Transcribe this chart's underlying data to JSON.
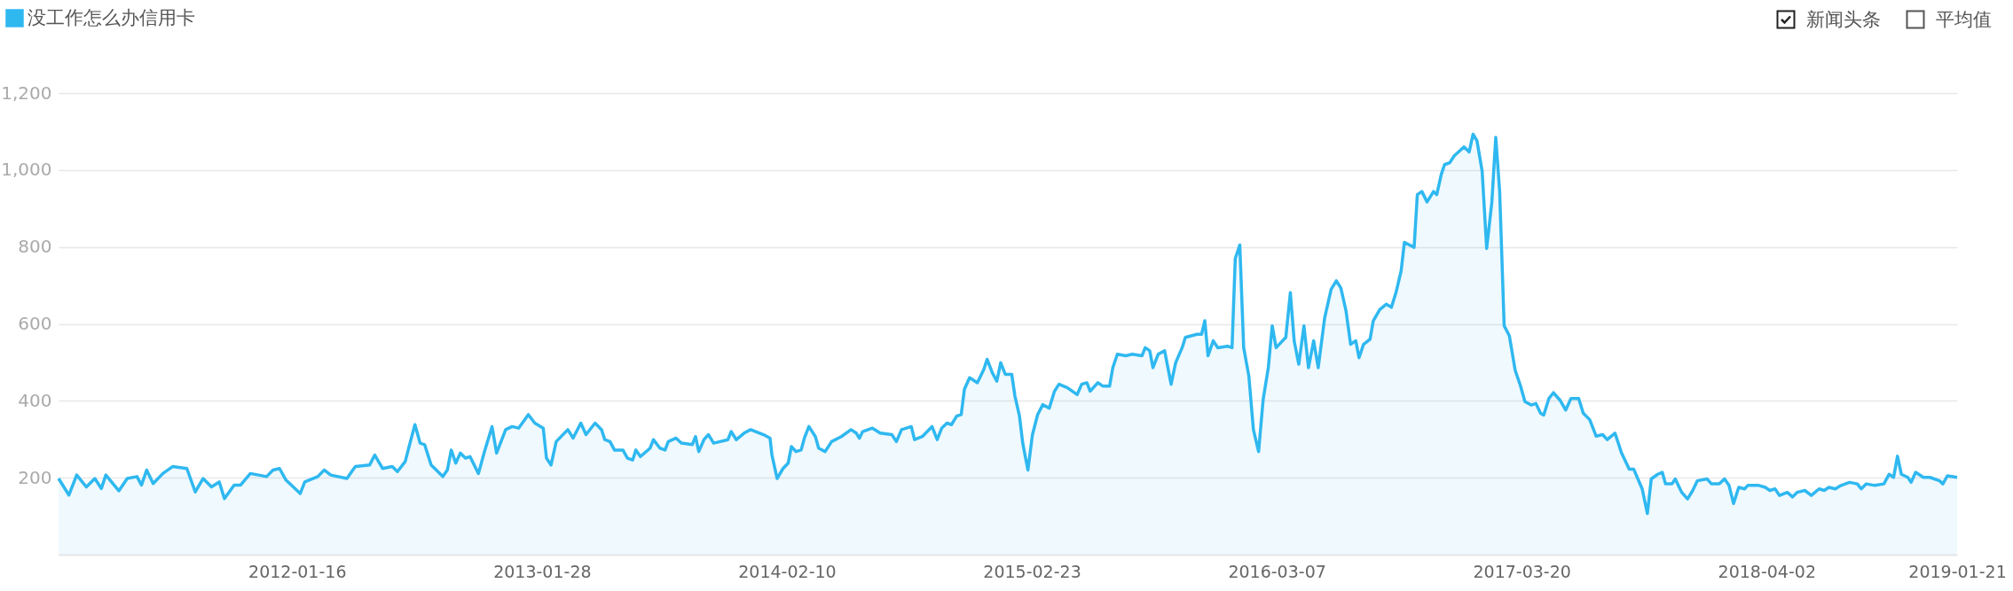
{
  "chart_data": {
    "type": "area",
    "legend": "top left",
    "grid": "y",
    "annotations": [
      "新闻头条",
      "平均值"
    ],
    "xlim": [
      "2011-01-13",
      "2019-01-21"
    ],
    "ylim": [
      0,
      1200
    ],
    "xticks": [
      "2012-01-16",
      "2013-01-28",
      "2014-02-10",
      "2015-02-23",
      "2016-03-07",
      "2017-03-20",
      "2018-04-02",
      "2019-01-21"
    ],
    "yticks": [
      200,
      400,
      600,
      800,
      {
        "value": 1000,
        "label": "1,000"
      },
      {
        "value": 1200,
        "label": "1,200"
      }
    ],
    "x": [
      "2011-01-13",
      "2011-01-29",
      "2011-02-10",
      "2011-02-25",
      "2011-03-10",
      "2011-03-20",
      "2011-03-27",
      "2011-04-16",
      "2011-04-29",
      "2011-05-14",
      "2011-05-21",
      "2011-05-29",
      "2011-06-08",
      "2011-06-23",
      "2011-07-08",
      "2011-07-30",
      "2011-08-12",
      "2011-08-24",
      "2011-09-06",
      "2011-09-18",
      "2011-09-26",
      "2011-10-11",
      "2011-10-21",
      "2011-11-05",
      "2011-11-30",
      "2011-12-10",
      "2011-12-20",
      "2011-12-30",
      "2012-01-21",
      "2012-01-28",
      "2012-02-17",
      "2012-02-27",
      "2012-03-08",
      "2012-04-02",
      "2012-04-15",
      "2012-05-07",
      "2012-05-15",
      "2012-05-27",
      "2012-06-11",
      "2012-06-19",
      "2012-07-01",
      "2012-07-09",
      "2012-07-16",
      "2012-07-24",
      "2012-07-31",
      "2012-08-10",
      "2012-08-28",
      "2012-09-04",
      "2012-09-10",
      "2012-09-17",
      "2012-09-24",
      "2012-10-02",
      "2012-10-09",
      "2012-10-22",
      "2012-11-01",
      "2012-11-12",
      "2012-11-19",
      "2012-12-03",
      "2012-12-13",
      "2012-12-23",
      "2013-01-07",
      "2013-01-17",
      "2013-01-30",
      "2013-02-04",
      "2013-02-11",
      "2013-02-19",
      "2013-03-09",
      "2013-03-17",
      "2013-03-29",
      "2013-04-06",
      "2013-04-20",
      "2013-04-30",
      "2013-05-05",
      "2013-05-13",
      "2013-05-20",
      "2013-06-02",
      "2013-06-09",
      "2013-06-17",
      "2013-06-22",
      "2013-06-29",
      "2013-07-14",
      "2013-07-19",
      "2013-07-29",
      "2013-08-06",
      "2013-08-11",
      "2013-08-23",
      "2013-08-31",
      "2013-09-17",
      "2013-09-22",
      "2013-09-27",
      "2013-10-05",
      "2013-10-12",
      "2013-10-20",
      "2013-11-11",
      "2013-11-16",
      "2013-11-24",
      "2013-12-06",
      "2013-12-16",
      "2014-01-05",
      "2014-01-15",
      "2014-01-18",
      "2014-01-26",
      "2014-02-04",
      "2014-02-12",
      "2014-02-17",
      "2014-02-24",
      "2014-03-04",
      "2014-03-09",
      "2014-03-16",
      "2014-03-26",
      "2014-03-31",
      "2014-04-10",
      "2014-04-20",
      "2014-05-05",
      "2014-05-20",
      "2014-05-28",
      "2014-06-02",
      "2014-06-07",
      "2014-06-22",
      "2014-07-04",
      "2014-07-22",
      "2014-07-29",
      "2014-08-06",
      "2014-08-21",
      "2014-08-26",
      "2014-09-07",
      "2014-09-22",
      "2014-09-30",
      "2014-10-07",
      "2014-10-15",
      "2014-10-22",
      "2014-10-30",
      "2014-11-06",
      "2014-11-11",
      "2014-11-19",
      "2014-12-01",
      "2014-12-11",
      "2014-12-16",
      "2014-12-24",
      "2014-12-31",
      "2015-01-06",
      "2015-01-13",
      "2015-01-23",
      "2015-01-28",
      "2015-02-04",
      "2015-02-09",
      "2015-02-17",
      "2015-02-24",
      "2015-03-04",
      "2015-03-12",
      "2015-03-22",
      "2015-03-30",
      "2015-04-06",
      "2015-04-19",
      "2015-05-04",
      "2015-05-11",
      "2015-05-19",
      "2015-05-24",
      "2015-06-05",
      "2015-06-13",
      "2015-06-23",
      "2015-06-28",
      "2015-07-05",
      "2015-07-18",
      "2015-07-28",
      "2015-08-12",
      "2015-08-17",
      "2015-08-24",
      "2015-08-29",
      "2015-09-06",
      "2015-09-16",
      "2015-09-26",
      "2015-10-03",
      "2015-10-13",
      "2015-10-18",
      "2015-11-05",
      "2015-11-12",
      "2015-11-17",
      "2015-11-22",
      "2015-11-30",
      "2015-12-07",
      "2015-12-22",
      "2015-12-29",
      "2016-01-03",
      "2016-01-10",
      "2016-01-16",
      "2016-01-24",
      "2016-01-31",
      "2016-02-08",
      "2016-02-15",
      "2016-02-23",
      "2016-02-29",
      "2016-03-06",
      "2016-03-21",
      "2016-03-28",
      "2016-04-03",
      "2016-04-10",
      "2016-04-18",
      "2016-04-25",
      "2016-05-03",
      "2016-05-10",
      "2016-05-20",
      "2016-05-30",
      "2016-06-07",
      "2016-06-14",
      "2016-06-22",
      "2016-06-29",
      "2016-07-07",
      "2016-07-12",
      "2016-07-19",
      "2016-07-29",
      "2016-08-03",
      "2016-08-13",
      "2016-08-23",
      "2016-08-31",
      "2016-09-07",
      "2016-09-15",
      "2016-09-20",
      "2016-10-05",
      "2016-10-10",
      "2016-10-17",
      "2016-10-25",
      "2016-11-04",
      "2016-11-09",
      "2016-11-16",
      "2016-11-21",
      "2016-11-29",
      "2016-12-06",
      "2016-12-14",
      "2016-12-21",
      "2016-12-29",
      "2017-01-04",
      "2017-01-10",
      "2017-01-18",
      "2017-01-25",
      "2017-02-02",
      "2017-02-08",
      "2017-02-14",
      "2017-02-21",
      "2017-03-01",
      "2017-03-10",
      "2017-03-18",
      "2017-03-25",
      "2017-04-04",
      "2017-04-11",
      "2017-04-18",
      "2017-04-23",
      "2017-05-01",
      "2017-05-08",
      "2017-05-18",
      "2017-05-27",
      "2017-06-04",
      "2017-06-16",
      "2017-06-23",
      "2017-07-03",
      "2017-07-13",
      "2017-07-23",
      "2017-07-30",
      "2017-08-11",
      "2017-08-21",
      "2017-09-02",
      "2017-09-09",
      "2017-09-22",
      "2017-09-30",
      "2017-10-06",
      "2017-10-16",
      "2017-10-23",
      "2017-10-28",
      "2017-11-07",
      "2017-11-12",
      "2017-11-22",
      "2017-12-01",
      "2017-12-09",
      "2017-12-16",
      "2017-12-31",
      "2018-01-07",
      "2018-01-19",
      "2018-01-27",
      "2018-02-03",
      "2018-02-10",
      "2018-02-18",
      "2018-02-27",
      "2018-03-04",
      "2018-03-21",
      "2018-03-31",
      "2018-04-07",
      "2018-04-15",
      "2018-04-22",
      "2018-05-04",
      "2018-05-12",
      "2018-05-19",
      "2018-05-31",
      "2018-06-10",
      "2018-06-22",
      "2018-06-30",
      "2018-07-07",
      "2018-07-17",
      "2018-07-26",
      "2018-08-08",
      "2018-08-20",
      "2018-08-26",
      "2018-09-03",
      "2018-09-16",
      "2018-09-30",
      "2018-10-08",
      "2018-10-15",
      "2018-10-21",
      "2018-10-27",
      "2018-11-06",
      "2018-11-11",
      "2018-11-18",
      "2018-11-30",
      "2018-12-10",
      "2018-12-25",
      "2018-12-30",
      "2019-01-06",
      "2019-01-21"
    ],
    "series": [
      {
        "name": "没工作怎么办信用卡",
        "color": "#2fb8f0",
        "values": [
          198,
          155,
          207,
          176,
          198,
          172,
          207,
          166,
          198,
          203,
          181,
          220,
          185,
          211,
          229,
          224,
          163,
          198,
          176,
          189,
          146,
          181,
          181,
          211,
          203,
          220,
          224,
          194,
          159,
          189,
          203,
          220,
          207,
          198,
          229,
          233,
          259,
          224,
          229,
          216,
          242,
          294,
          338,
          290,
          286,
          233,
          203,
          220,
          272,
          238,
          264,
          251,
          255,
          211,
          272,
          333,
          264,
          325,
          333,
          329,
          364,
          342,
          329,
          251,
          233,
          294,
          325,
          303,
          342,
          312,
          342,
          325,
          299,
          294,
          272,
          272,
          251,
          246,
          272,
          255,
          277,
          299,
          277,
          272,
          294,
          303,
          290,
          286,
          307,
          268,
          299,
          312,
          290,
          299,
          320,
          299,
          316,
          325,
          312,
          303,
          259,
          198,
          224,
          238,
          281,
          268,
          272,
          303,
          333,
          307,
          277,
          268,
          294,
          307,
          325,
          316,
          303,
          320,
          329,
          316,
          312,
          294,
          325,
          333,
          299,
          307,
          333,
          299,
          329,
          342,
          338,
          360,
          364,
          430,
          460,
          447,
          482,
          508,
          473,
          451,
          499,
          469,
          469,
          412,
          360,
          290,
          220,
          312,
          364,
          390,
          381,
          425,
          443,
          434,
          416,
          443,
          447,
          425,
          447,
          438,
          438,
          486,
          521,
          517,
          521,
          517,
          538,
          530,
          486,
          521,
          530,
          443,
          499,
          538,
          565,
          573,
          573,
          608,
          517,
          556,
          538,
          542,
          538,
          770,
          805,
          538,
          464,
          325,
          268,
          403,
          486,
          595,
          538,
          565,
          681,
          555,
          495,
          595,
          486,
          556,
          486,
          616,
          690,
          712,
          693,
          633,
          547,
          556,
          512,
          547,
          560,
          608,
          637,
          651,
          643,
          681,
          738,
          812,
          799,
          936,
          944,
          917,
          944,
          936,
          989,
          1014,
          1019,
          1037,
          1049,
          1060,
          1047,
          1093,
          1076,
          997,
          796,
          917,
          1085,
          945,
          595,
          569,
          479,
          440,
          398,
          389,
          393,
          368,
          363,
          406,
          421,
          402,
          376,
          406,
          406,
          368,
          351,
          308,
          312,
          299,
          316,
          265,
          222,
          222,
          171,
          107,
          197,
          209,
          214,
          184,
          184,
          197,
          162,
          145,
          167,
          192,
          197,
          184,
          184,
          197,
          180,
          133,
          175,
          171,
          180,
          180,
          175,
          167,
          171,
          154,
          162,
          150,
          162,
          167,
          154,
          171,
          167,
          175,
          171,
          180,
          188,
          184,
          171,
          184,
          180,
          184,
          209,
          201,
          256,
          209,
          201,
          188,
          214,
          201,
          201,
          192,
          184,
          205,
          201
        ]
      }
    ]
  }
}
